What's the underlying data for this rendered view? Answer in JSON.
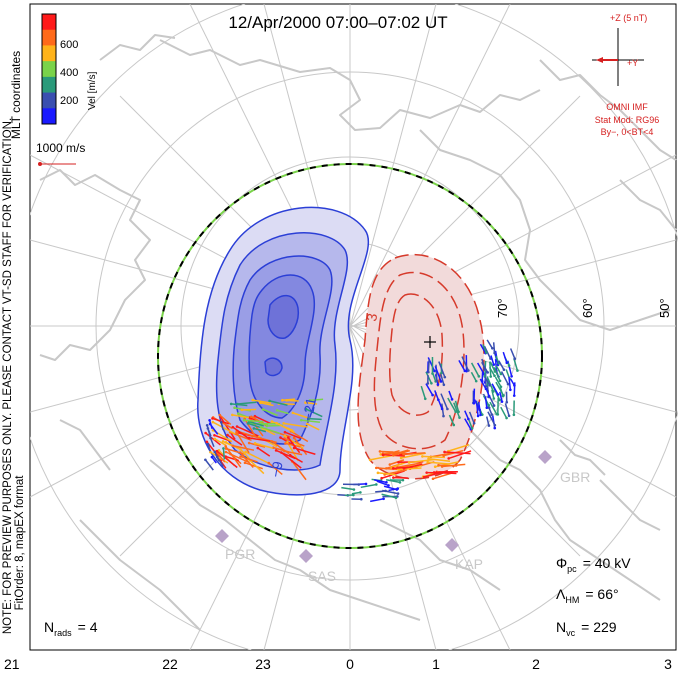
{
  "title": "12/Apr/2000 07:00–07:02 UT",
  "colorbar": {
    "unit_label": "Vel [m/s]",
    "ticks": [
      "600",
      "400",
      "200"
    ],
    "colors": [
      "#ff1a1a",
      "#ff6a1a",
      "#ffb31a",
      "#7ad34a",
      "#2a9a7a",
      "#3a4fb0",
      "#1a1aff"
    ]
  },
  "coordinates_label": "MLT coordinates",
  "notice_text": "NOTE: FOR PREVIEW PURPOSES ONLY. PLEASE CONTACT VT-SD STAFF FOR VERIFICATION.",
  "fit_text": "FitOrder: 8, mapEX format",
  "vector_scale_label": "1000 m/s",
  "imf": {
    "z_label": "+Z (5 nT)",
    "y_label": "+Y",
    "source_label": "OMNI IMF",
    "model_line1": "Stat Mod: RG96",
    "model_line2": "By−, 0<BT<4"
  },
  "latitude_labels": [
    "70°",
    "60°",
    "50°"
  ],
  "contour_labels": [
    "3",
    "−21",
    "−9"
  ],
  "stations": [
    "GBR",
    "PGR",
    "SAS",
    "KAP"
  ],
  "stats": {
    "phi_label": "Φ",
    "phi_sub": "pc",
    "phi_value": "= 40 kV",
    "lambda_label": "Λ",
    "lambda_sub": "HM",
    "lambda_value": "= 66°",
    "nvc_label": "N",
    "nvc_sub": "vc",
    "nvc_value": "= 229",
    "nrads_label": "N",
    "nrads_sub": "rads",
    "nrads_value": "= 4"
  },
  "mlt_axis": [
    "21",
    "22",
    "23",
    "0",
    "1",
    "2",
    "3"
  ],
  "colors": {
    "negative_cell": "#2b3fd6",
    "positive_cell": "#d63a2b",
    "coast": "#c8c8c8",
    "grid": "#c8c8c8"
  }
}
